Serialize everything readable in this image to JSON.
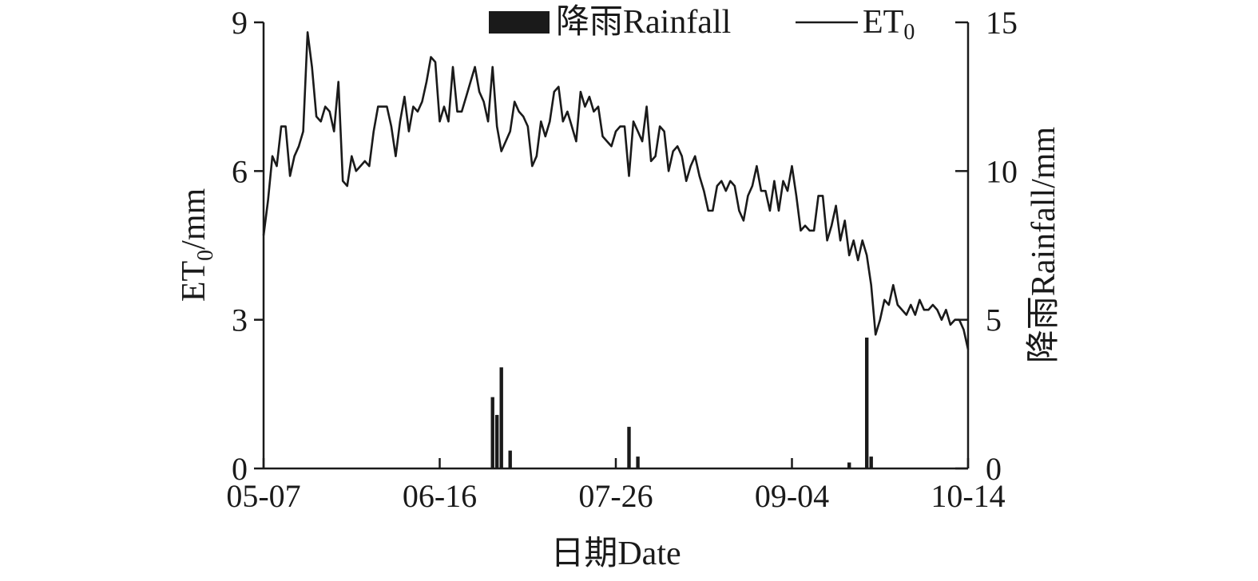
{
  "chart_data": {
    "type": "bar+line",
    "xlabel": "日期Date",
    "ylabel_left": "ET0/mm",
    "ylabel_left_base": "ET",
    "ylabel_left_sub": "0",
    "ylabel_left_unit": "/mm",
    "ylabel_right": "降雨Rainfall/mm",
    "x_ticks": [
      "05-07",
      "06-16",
      "07-26",
      "09-04",
      "10-14"
    ],
    "x_range_day_index": [
      0,
      160
    ],
    "ylim_left": [
      0,
      9
    ],
    "y_ticks_left": [
      "0",
      "3",
      "6",
      "9"
    ],
    "ylim_right": [
      0,
      15
    ],
    "y_ticks_right": [
      "0",
      "5",
      "10",
      "15"
    ],
    "legend_position": "top-center",
    "legend": {
      "rainfall_label": "降雨Rainfall",
      "et0_label_base": "ET",
      "et0_label_sub": "0"
    },
    "series": [
      {
        "name": "ET0",
        "type": "line",
        "axis": "left",
        "day_index": [
          0,
          1,
          2,
          3,
          4,
          5,
          6,
          7,
          8,
          9,
          10,
          11,
          12,
          13,
          14,
          15,
          16,
          17,
          18,
          19,
          20,
          21,
          22,
          23,
          24,
          25,
          26,
          27,
          28,
          29,
          30,
          31,
          32,
          33,
          34,
          35,
          36,
          37,
          38,
          39,
          40,
          41,
          42,
          43,
          44,
          45,
          46,
          47,
          48,
          49,
          50,
          51,
          52,
          53,
          54,
          55,
          56,
          57,
          58,
          59,
          60,
          61,
          62,
          63,
          64,
          65,
          66,
          67,
          68,
          69,
          70,
          71,
          72,
          73,
          74,
          75,
          76,
          77,
          78,
          79,
          80,
          81,
          82,
          83,
          84,
          85,
          86,
          87,
          88,
          89,
          90,
          91,
          92,
          93,
          94,
          95,
          96,
          97,
          98,
          99,
          100,
          101,
          102,
          103,
          104,
          105,
          106,
          107,
          108,
          109,
          110,
          111,
          112,
          113,
          114,
          115,
          116,
          117,
          118,
          119,
          120,
          121,
          122,
          123,
          124,
          125,
          126,
          127,
          128,
          129,
          130,
          131,
          132,
          133,
          134,
          135,
          136,
          137,
          138,
          139,
          140,
          141,
          142,
          143,
          144,
          145,
          146,
          147,
          148,
          149,
          150,
          151,
          152,
          153,
          154,
          155,
          156,
          157,
          158,
          159,
          160
        ],
        "values": [
          4.7,
          5.4,
          6.3,
          6.1,
          6.9,
          6.9,
          5.9,
          6.3,
          6.5,
          6.8,
          8.8,
          8.1,
          7.1,
          7.0,
          7.3,
          7.2,
          6.8,
          7.8,
          5.8,
          5.7,
          6.3,
          6.0,
          6.1,
          6.2,
          6.1,
          6.8,
          7.3,
          7.3,
          7.3,
          6.9,
          6.3,
          7.0,
          7.5,
          6.8,
          7.3,
          7.2,
          7.4,
          7.8,
          8.3,
          8.2,
          7.0,
          7.3,
          7.0,
          8.1,
          7.2,
          7.2,
          7.5,
          7.8,
          8.1,
          7.6,
          7.4,
          7.0,
          8.1,
          6.9,
          6.4,
          6.6,
          6.8,
          7.4,
          7.2,
          7.1,
          6.9,
          6.1,
          6.3,
          7.0,
          6.7,
          7.0,
          7.6,
          7.7,
          7.0,
          7.2,
          6.9,
          6.6,
          7.6,
          7.3,
          7.5,
          7.2,
          7.3,
          6.7,
          6.6,
          6.5,
          6.8,
          6.9,
          6.9,
          5.9,
          7.0,
          6.8,
          6.6,
          7.3,
          6.2,
          6.3,
          6.9,
          6.8,
          6.0,
          6.4,
          6.5,
          6.3,
          5.8,
          6.1,
          6.3,
          5.9,
          5.6,
          5.2,
          5.2,
          5.7,
          5.8,
          5.6,
          5.8,
          5.7,
          5.2,
          5.0,
          5.5,
          5.7,
          6.1,
          5.6,
          5.6,
          5.2,
          5.8,
          5.2,
          5.8,
          5.6,
          6.1,
          5.5,
          4.8,
          4.9,
          4.8,
          4.8,
          5.5,
          5.5,
          4.6,
          4.9,
          5.3,
          4.6,
          5.0,
          4.3,
          4.6,
          4.2,
          4.6,
          4.3,
          3.7,
          2.7,
          3.0,
          3.4,
          3.3,
          3.7,
          3.3,
          3.2,
          3.1,
          3.3,
          3.1,
          3.4,
          3.2,
          3.2,
          3.3,
          3.2,
          3.0,
          3.2,
          2.9,
          3.0,
          3.0,
          2.8,
          2.4
        ]
      },
      {
        "name": "降雨Rainfall",
        "type": "bar",
        "axis": "right",
        "day_index": [
          52,
          53,
          54,
          56,
          83,
          85,
          133,
          137,
          138
        ],
        "values": [
          2.4,
          1.8,
          3.4,
          0.6,
          1.4,
          0.4,
          0.2,
          4.4,
          0.4
        ]
      }
    ]
  }
}
